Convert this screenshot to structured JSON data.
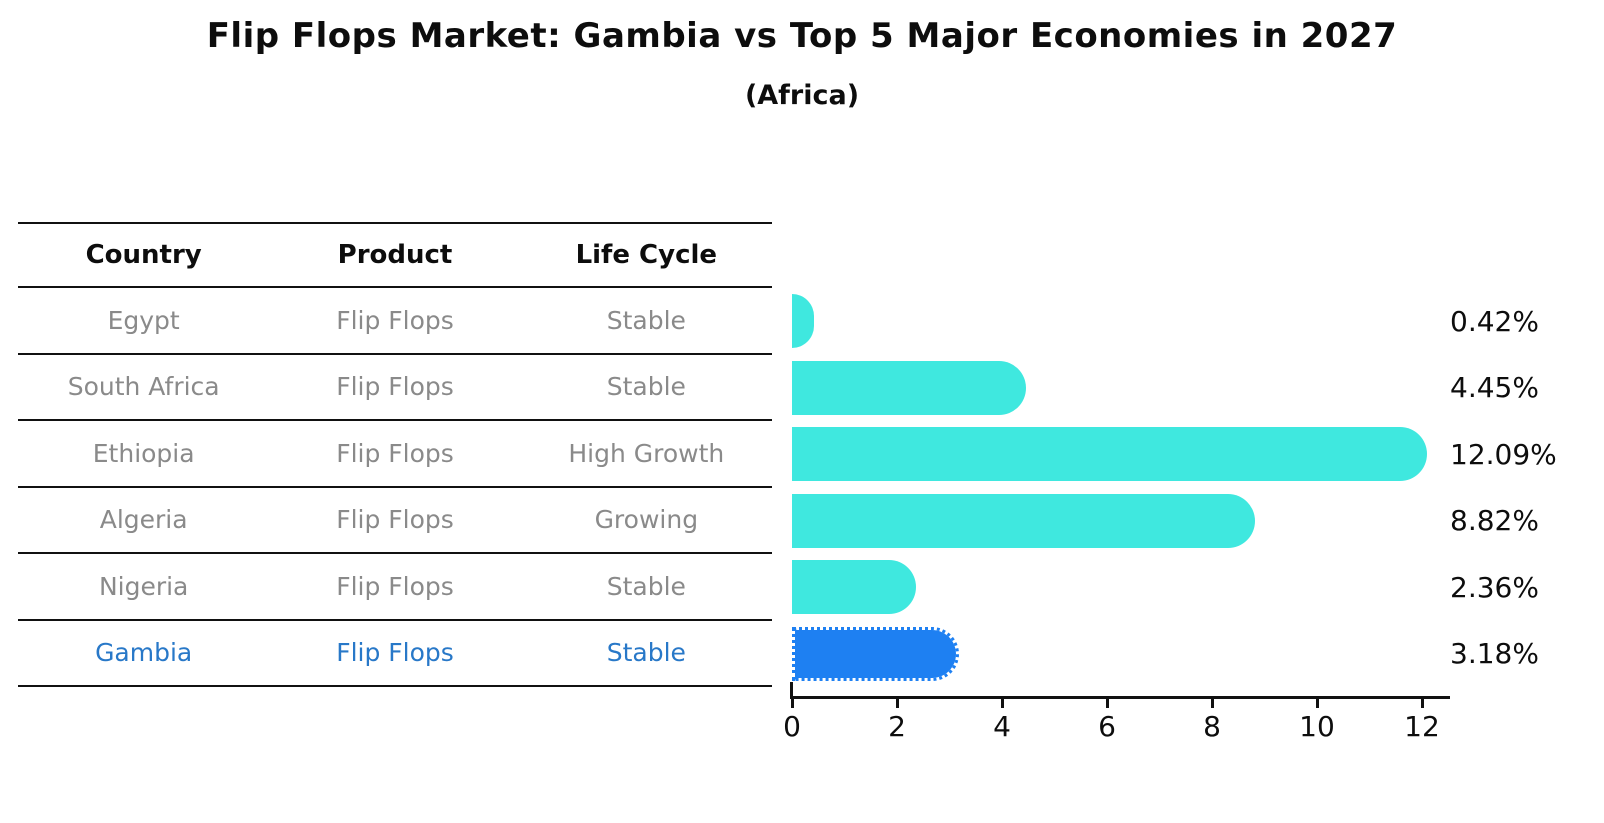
{
  "title": "Flip Flops Market: Gambia vs Top 5 Major Economies in 2027",
  "subtitle": "(Africa)",
  "table": {
    "headers": [
      "Country",
      "Product",
      "Life Cycle"
    ],
    "rows": [
      {
        "country": "Egypt",
        "product": "Flip Flops",
        "life_cycle": "Stable",
        "highlight": false
      },
      {
        "country": "South Africa",
        "product": "Flip Flops",
        "life_cycle": "Stable",
        "highlight": false
      },
      {
        "country": "Ethiopia",
        "product": "Flip Flops",
        "life_cycle": "High Growth",
        "highlight": false
      },
      {
        "country": "Algeria",
        "product": "Flip Flops",
        "life_cycle": "Growing",
        "highlight": false
      },
      {
        "country": "Nigeria",
        "product": "Flip Flops",
        "life_cycle": "Stable",
        "highlight": false
      },
      {
        "country": "Gambia",
        "product": "Flip Flops",
        "life_cycle": "Stable",
        "highlight": true
      }
    ]
  },
  "chart_data": {
    "type": "bar",
    "orientation": "horizontal",
    "title": "Flip Flops Market: Gambia vs Top 5 Major Economies in 2027",
    "subtitle": "(Africa)",
    "categories": [
      "Egypt",
      "South Africa",
      "Ethiopia",
      "Algeria",
      "Nigeria",
      "Gambia"
    ],
    "values": [
      0.42,
      4.45,
      12.09,
      8.82,
      2.36,
      3.18
    ],
    "value_labels": [
      "0.42%",
      "4.45%",
      "12.09%",
      "8.82%",
      "2.36%",
      "3.18%"
    ],
    "highlight_index": 5,
    "xlim": [
      0,
      12.57
    ],
    "xticks": [
      0,
      2,
      4,
      6,
      8,
      10,
      12
    ],
    "grid": false,
    "legend": false,
    "bar_color": "#3fe8df",
    "highlight_color": "#1e80f2"
  },
  "colors": {
    "bar": "#3fe8df",
    "highlight_bar": "#1e80f2",
    "highlight_text": "#2878c8",
    "cell_text": "#8a8a8a",
    "axis": "#111111"
  }
}
